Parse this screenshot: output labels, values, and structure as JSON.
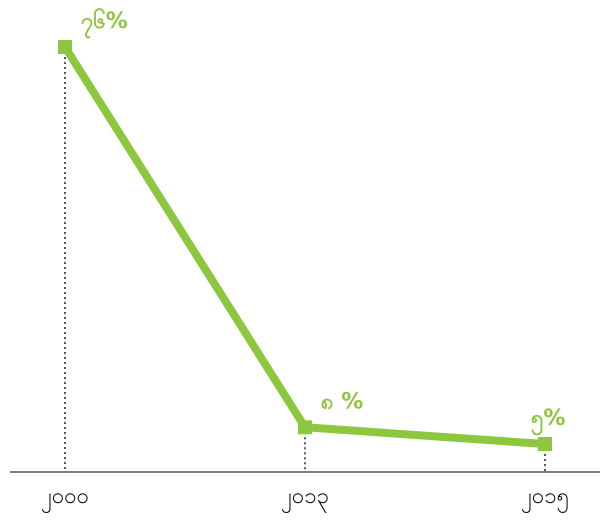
{
  "chart_data": {
    "type": "line",
    "categories": [
      "၂၀၀၀",
      "၂၀၁၃",
      "၂၀၁၅"
    ],
    "series": [
      {
        "color": "#8dc63f",
        "values": [
          76,
          8,
          5
        ],
        "value_labels": [
          "၇၆%",
          "၈ %",
          "၅%"
        ]
      }
    ]
  }
}
